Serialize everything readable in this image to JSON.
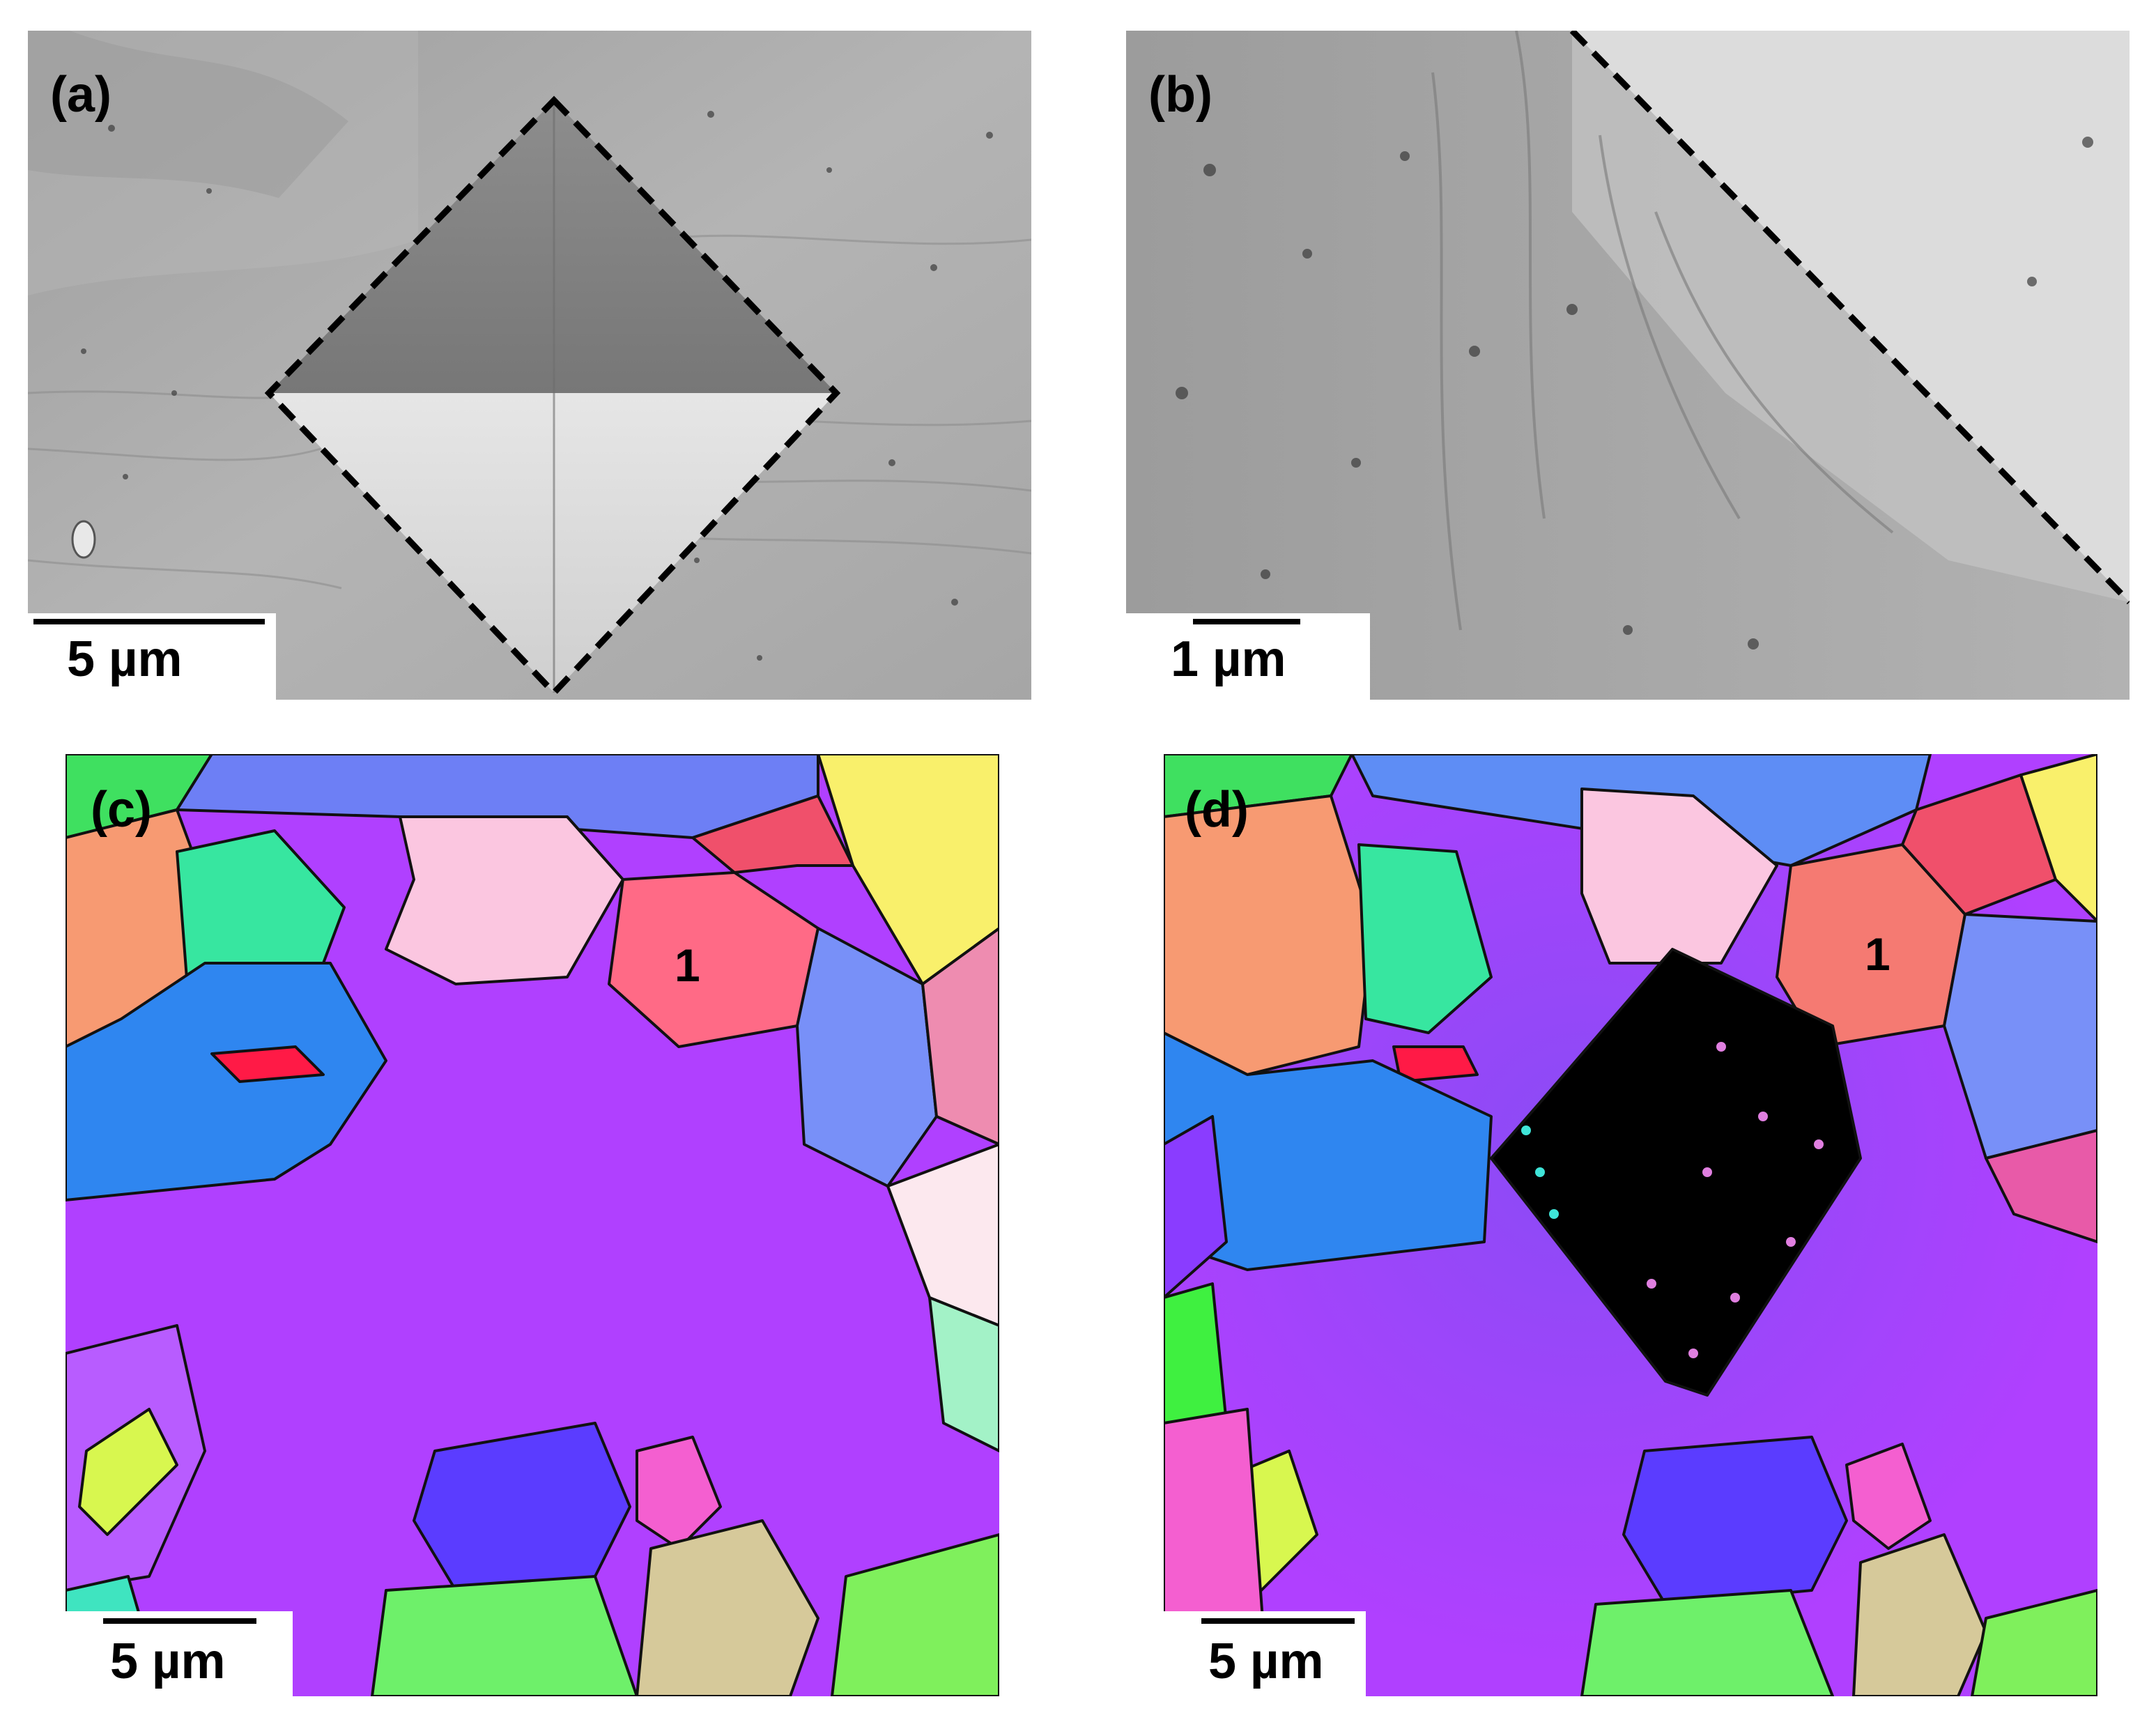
{
  "figure": {
    "panels": [
      {
        "id": "a",
        "label": "(a)",
        "type": "SEM micrograph",
        "scale_bar": "5 µm"
      },
      {
        "id": "b",
        "label": "(b)",
        "type": "SEM micrograph",
        "scale_bar": "1 µm"
      },
      {
        "id": "c",
        "label": "(c)",
        "type": "EBSD orientation map",
        "scale_bar": "5 µm",
        "grain_label": "1"
      },
      {
        "id": "d",
        "label": "(d)",
        "type": "EBSD orientation map",
        "scale_bar": "5 µm",
        "grain_label": "1"
      }
    ],
    "colors": {
      "sem_background": "#a9a9a9",
      "indent_outline": "#000000",
      "matrix_purple": "#b040ff",
      "grain_blue": "#2f86f0",
      "grain_pink": "#ff6a86",
      "indent_unindexed": "#000000"
    }
  }
}
